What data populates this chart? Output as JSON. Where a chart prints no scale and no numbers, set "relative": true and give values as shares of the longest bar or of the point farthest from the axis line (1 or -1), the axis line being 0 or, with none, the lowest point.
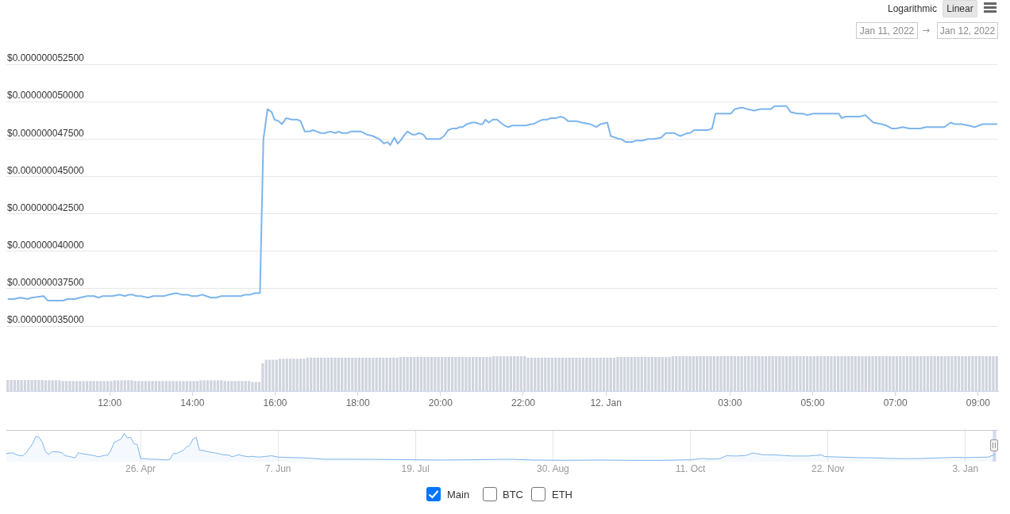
{
  "chart_data": [
    {
      "type": "line",
      "x": [
        "2022-01-11T09:33",
        "2022-01-11T09:41",
        "2022-01-11T09:50",
        "2022-01-11T10:01",
        "2022-01-11T10:07",
        "2022-01-11T10:24",
        "2022-01-11T10:30",
        "2022-01-11T10:40",
        "2022-01-11T10:52",
        "2022-01-11T10:59",
        "2022-01-11T11:09",
        "2022-01-11T11:17",
        "2022-01-11T11:27",
        "2022-01-11T11:37",
        "2022-01-11T11:44",
        "2022-01-11T11:50",
        "2022-01-11T11:58",
        "2022-01-11T12:04",
        "2022-01-11T12:14",
        "2022-01-11T12:22",
        "2022-01-11T12:28",
        "2022-01-11T12:33",
        "2022-01-11T12:39",
        "2022-01-11T12:45",
        "2022-01-11T12:56",
        "2022-01-11T13:03",
        "2022-01-11T13:11",
        "2022-01-11T13:19",
        "2022-01-11T13:26",
        "2022-01-11T13:36",
        "2022-01-11T13:44",
        "2022-01-11T13:52",
        "2022-01-11T13:59",
        "2022-01-11T14:07",
        "2022-01-11T14:14",
        "2022-01-11T14:20",
        "2022-01-11T14:27",
        "2022-01-11T14:34",
        "2022-01-11T14:42",
        "2022-01-11T14:49",
        "2022-01-11T14:55",
        "2022-01-11T14:58",
        "2022-01-11T15:10",
        "2022-01-11T15:17",
        "2022-01-11T15:24",
        "2022-01-11T15:31",
        "2022-01-11T15:38",
        "2022-01-11T15:43",
        "2022-01-11T15:49",
        "2022-01-11T15:55",
        "2022-01-11T15:59",
        "2022-01-11T16:05",
        "2022-01-11T16:10",
        "2022-01-11T16:16",
        "2022-01-11T16:24",
        "2022-01-11T16:32",
        "2022-01-11T16:37",
        "2022-01-11T16:43",
        "2022-01-11T16:49",
        "2022-01-11T16:55",
        "2022-01-11T17:01",
        "2022-01-11T17:06",
        "2022-01-11T17:12",
        "2022-01-11T17:20",
        "2022-01-11T17:28",
        "2022-01-11T17:32",
        "2022-01-11T17:37",
        "2022-01-11T17:39",
        "2022-01-11T17:45",
        "2022-01-11T17:50",
        "2022-01-11T18:00",
        "2022-01-11T18:05",
        "2022-01-11T18:13",
        "2022-01-11T18:22",
        "2022-01-11T18:31",
        "2022-01-11T18:38",
        "2022-01-11T18:43",
        "2022-01-11T18:47",
        "2022-01-11T18:53",
        "2022-01-11T18:58",
        "2022-01-11T19:02",
        "2022-01-11T19:08",
        "2022-01-11T19:12",
        "2022-01-11T19:19",
        "2022-01-11T19:24",
        "2022-01-11T19:29",
        "2022-01-11T19:35",
        "2022-01-11T19:40",
        "2022-01-11T19:47",
        "2022-01-11T19:55",
        "2022-01-11T19:59",
        "2022-01-11T20:05",
        "2022-01-11T20:11",
        "2022-01-11T20:17",
        "2022-01-11T20:23",
        "2022-01-11T20:28",
        "2022-01-11T20:32",
        "2022-01-11T20:38",
        "2022-01-11T20:46",
        "2022-01-11T20:51",
        "2022-01-11T20:57",
        "2022-01-11T21:01",
        "2022-01-11T21:05",
        "2022-01-11T21:10",
        "2022-01-11T21:16",
        "2022-01-11T21:22",
        "2022-01-11T21:27",
        "2022-01-11T21:33",
        "2022-01-11T21:38",
        "2022-01-11T21:44",
        "2022-01-11T21:48",
        "2022-01-11T21:56",
        "2022-01-11T22:04",
        "2022-01-11T22:11",
        "2022-01-11T22:15",
        "2022-01-11T22:23",
        "2022-01-11T22:29",
        "2022-01-11T22:35",
        "2022-01-11T22:40",
        "2022-01-11T22:48",
        "2022-01-11T22:54",
        "2022-01-11T23:00",
        "2022-01-11T23:05",
        "2022-01-11T23:17",
        "2022-01-11T23:25",
        "2022-01-11T23:37",
        "2022-01-11T23:46",
        "2022-01-11T23:52",
        "2022-01-12T00:02",
        "2022-01-12T00:07",
        "2022-01-12T00:13",
        "2022-01-12T00:19",
        "2022-01-12T00:22",
        "2022-01-12T00:29",
        "2022-01-12T00:38",
        "2022-01-12T00:44",
        "2022-01-12T00:53",
        "2022-01-12T01:01",
        "2022-01-12T01:10",
        "2022-01-12T01:20",
        "2022-01-12T01:27",
        "2022-01-12T01:34",
        "2022-01-12T01:39",
        "2022-01-12T01:43",
        "2022-01-12T01:48",
        "2022-01-12T01:53",
        "2022-01-12T01:59",
        "2022-01-12T02:02",
        "2022-01-12T02:08",
        "2022-01-12T02:16",
        "2022-01-12T02:21",
        "2022-01-12T02:28",
        "2022-01-12T02:34",
        "2022-01-12T02:39",
        "2022-01-12T02:47",
        "2022-01-12T02:54",
        "2022-01-12T03:01",
        "2022-01-12T03:07",
        "2022-01-12T03:16",
        "2022-01-12T03:19",
        "2022-01-12T03:25",
        "2022-01-12T03:35",
        "2022-01-12T03:44",
        "2022-01-12T03:50",
        "2022-01-12T03:56",
        "2022-01-12T03:59",
        "2022-01-12T04:05",
        "2022-01-12T04:14",
        "2022-01-12T04:22",
        "2022-01-12T04:28",
        "2022-01-12T04:38",
        "2022-01-12T04:46",
        "2022-01-12T04:52",
        "2022-01-12T05:01",
        "2022-01-12T05:08",
        "2022-01-12T05:16",
        "2022-01-12T05:24",
        "2022-01-12T05:32",
        "2022-01-12T05:38",
        "2022-01-12T05:42",
        "2022-01-12T05:48",
        "2022-01-12T05:59",
        "2022-01-12T06:08",
        "2022-01-12T06:16",
        "2022-01-12T06:28",
        "2022-01-12T06:40",
        "2022-01-12T06:47",
        "2022-01-12T06:55",
        "2022-01-12T07:01",
        "2022-01-12T07:11",
        "2022-01-12T07:20",
        "2022-01-12T07:26",
        "2022-01-12T07:36",
        "2022-01-12T07:44",
        "2022-01-12T07:57",
        "2022-01-12T08:11",
        "2022-01-12T08:20",
        "2022-01-12T08:26",
        "2022-01-12T08:36",
        "2022-01-12T08:46",
        "2022-01-12T08:55",
        "2022-01-12T09:07",
        "2022-01-12T09:19",
        "2022-01-12T09:27"
      ],
      "series": [
        {
          "color": "#7cb5ec",
          "values": [
            3.68e-08,
            3.68e-08,
            3.69e-08,
            3.68e-08,
            3.69e-08,
            3.7e-08,
            3.67e-08,
            3.67e-08,
            3.67e-08,
            3.68e-08,
            3.68e-08,
            3.69e-08,
            3.7e-08,
            3.7e-08,
            3.69e-08,
            3.7e-08,
            3.7e-08,
            3.7e-08,
            3.71e-08,
            3.7e-08,
            3.71e-08,
            3.71e-08,
            3.7e-08,
            3.7e-08,
            3.69e-08,
            3.7e-08,
            3.7e-08,
            3.7e-08,
            3.71e-08,
            3.72e-08,
            3.71e-08,
            3.71e-08,
            3.7e-08,
            3.7e-08,
            3.71e-08,
            3.7e-08,
            3.69e-08,
            3.69e-08,
            3.7e-08,
            3.7e-08,
            3.7e-08,
            3.7e-08,
            3.7e-08,
            3.71e-08,
            3.71e-08,
            3.72e-08,
            3.72e-08,
            4.75e-08,
            4.95e-08,
            4.93e-08,
            4.88e-08,
            4.87e-08,
            4.85e-08,
            4.89e-08,
            4.88e-08,
            4.88e-08,
            4.87e-08,
            4.8e-08,
            4.8e-08,
            4.81e-08,
            4.8e-08,
            4.79e-08,
            4.79e-08,
            4.8e-08,
            4.79e-08,
            4.8e-08,
            4.79e-08,
            4.79e-08,
            4.79e-08,
            4.8e-08,
            4.8e-08,
            4.8e-08,
            4.78e-08,
            4.77e-08,
            4.75e-08,
            4.72e-08,
            4.73e-08,
            4.71e-08,
            4.76e-08,
            4.72e-08,
            4.74e-08,
            4.78e-08,
            4.8e-08,
            4.78e-08,
            4.78e-08,
            4.79e-08,
            4.78e-08,
            4.75e-08,
            4.75e-08,
            4.75e-08,
            4.75e-08,
            4.77e-08,
            4.81e-08,
            4.82e-08,
            4.82e-08,
            4.83e-08,
            4.83e-08,
            4.85e-08,
            4.86e-08,
            4.86e-08,
            4.85e-08,
            4.85e-08,
            4.88e-08,
            4.86e-08,
            4.88e-08,
            4.88e-08,
            4.86e-08,
            4.84e-08,
            4.83e-08,
            4.84e-08,
            4.84e-08,
            4.84e-08,
            4.84e-08,
            4.85e-08,
            4.85e-08,
            4.87e-08,
            4.88e-08,
            4.88e-08,
            4.89e-08,
            4.89e-08,
            4.9e-08,
            4.89e-08,
            4.87e-08,
            4.87e-08,
            4.86e-08,
            4.85e-08,
            4.83e-08,
            4.85e-08,
            4.86e-08,
            4.77e-08,
            4.76e-08,
            4.75e-08,
            4.75e-08,
            4.73e-08,
            4.73e-08,
            4.74e-08,
            4.74e-08,
            4.75e-08,
            4.75e-08,
            4.76e-08,
            4.79e-08,
            4.79e-08,
            4.79e-08,
            4.78e-08,
            4.77e-08,
            4.78e-08,
            4.79e-08,
            4.79e-08,
            4.81e-08,
            4.81e-08,
            4.81e-08,
            4.81e-08,
            4.82e-08,
            4.92e-08,
            4.92e-08,
            4.92e-08,
            4.92e-08,
            4.95e-08,
            4.96e-08,
            4.96e-08,
            4.95e-08,
            4.94e-08,
            4.95e-08,
            4.95e-08,
            4.95e-08,
            4.95e-08,
            4.97e-08,
            4.97e-08,
            4.97e-08,
            4.93e-08,
            4.92e-08,
            4.92e-08,
            4.91e-08,
            4.92e-08,
            4.92e-08,
            4.92e-08,
            4.92e-08,
            4.92e-08,
            4.92e-08,
            4.89e-08,
            4.9e-08,
            4.9e-08,
            4.9e-08,
            4.91e-08,
            4.86e-08,
            4.85e-08,
            4.84e-08,
            4.82e-08,
            4.82e-08,
            4.83e-08,
            4.82e-08,
            4.82e-08,
            4.82e-08,
            4.83e-08,
            4.83e-08,
            4.83e-08,
            4.86e-08,
            4.85e-08,
            4.85e-08,
            4.84e-08,
            4.83e-08,
            4.85e-08,
            4.85e-08,
            4.85e-08
          ]
        }
      ],
      "xlim": [
        "2022-01-11T09:30",
        "2022-01-12T09:29"
      ],
      "ylim": [
        3.5e-08,
        5.25e-08
      ],
      "yticks": [
        {
          "value": 3.5e-08,
          "label": "$0.000000035000"
        },
        {
          "value": 3.75e-08,
          "label": "$0.000000037500"
        },
        {
          "value": 4e-08,
          "label": "$0.000000040000"
        },
        {
          "value": 4.25e-08,
          "label": "$0.000000042500"
        },
        {
          "value": 4.5e-08,
          "label": "$0.000000045000"
        },
        {
          "value": 4.75e-08,
          "label": "$0.000000047500"
        },
        {
          "value": 5e-08,
          "label": "$0.000000050000"
        },
        {
          "value": 5.25e-08,
          "label": "$0.000000052500"
        }
      ],
      "grid": "y",
      "tick_labels": "y",
      "annotations": [
        "Logarithmic",
        "Linear",
        "Jan 11, 2022",
        "→",
        "Jan 12, 2022",
        "Main",
        "BTC",
        "ETH"
      ]
    },
    {
      "type": "bar",
      "relative": true,
      "color": "#d0d4de",
      "x": [
        "2022-01-11T09:32",
        "2022-01-11T09:37",
        "2022-01-11T09:42",
        "2022-01-11T09:47",
        "2022-01-11T09:52",
        "2022-01-11T09:57",
        "2022-01-11T10:02",
        "2022-01-11T10:07",
        "2022-01-11T10:12",
        "2022-01-11T10:17",
        "2022-01-11T10:22",
        "2022-01-11T10:27",
        "2022-01-11T10:32",
        "2022-01-11T10:37",
        "2022-01-11T10:42",
        "2022-01-11T10:47",
        "2022-01-11T10:52",
        "2022-01-11T10:57",
        "2022-01-11T11:02",
        "2022-01-11T11:07",
        "2022-01-11T11:12",
        "2022-01-11T11:17",
        "2022-01-11T11:22",
        "2022-01-11T11:27",
        "2022-01-11T11:32",
        "2022-01-11T11:37",
        "2022-01-11T11:42",
        "2022-01-11T11:47",
        "2022-01-11T11:52",
        "2022-01-11T11:57",
        "2022-01-11T12:02",
        "2022-01-11T12:07",
        "2022-01-11T12:12",
        "2022-01-11T12:17",
        "2022-01-11T12:22",
        "2022-01-11T12:27",
        "2022-01-11T12:32",
        "2022-01-11T12:37",
        "2022-01-11T12:42",
        "2022-01-11T12:47",
        "2022-01-11T12:52",
        "2022-01-11T12:57",
        "2022-01-11T13:02",
        "2022-01-11T13:07",
        "2022-01-11T13:12",
        "2022-01-11T13:17",
        "2022-01-11T13:22",
        "2022-01-11T13:27",
        "2022-01-11T13:32",
        "2022-01-11T13:37",
        "2022-01-11T13:42",
        "2022-01-11T13:47",
        "2022-01-11T13:52",
        "2022-01-11T13:57",
        "2022-01-11T14:02",
        "2022-01-11T14:07",
        "2022-01-11T14:12",
        "2022-01-11T14:17",
        "2022-01-11T14:22",
        "2022-01-11T14:27",
        "2022-01-11T14:32",
        "2022-01-11T14:37",
        "2022-01-11T14:42",
        "2022-01-11T14:47",
        "2022-01-11T14:52",
        "2022-01-11T14:57",
        "2022-01-11T15:02",
        "2022-01-11T15:07",
        "2022-01-11T15:12",
        "2022-01-11T15:17",
        "2022-01-11T15:22",
        "2022-01-11T15:27",
        "2022-01-11T15:32",
        "2022-01-11T15:37",
        "2022-01-11T15:42",
        "2022-01-11T15:47",
        "2022-01-11T15:52",
        "2022-01-11T15:57",
        "2022-01-11T16:02",
        "2022-01-11T16:07",
        "2022-01-11T16:12",
        "2022-01-11T16:17",
        "2022-01-11T16:22",
        "2022-01-11T16:27",
        "2022-01-11T16:32",
        "2022-01-11T16:37",
        "2022-01-11T16:42",
        "2022-01-11T16:47",
        "2022-01-11T16:52",
        "2022-01-11T16:57",
        "2022-01-11T17:02",
        "2022-01-11T17:07",
        "2022-01-11T17:12",
        "2022-01-11T17:17",
        "2022-01-11T17:22",
        "2022-01-11T17:27",
        "2022-01-11T17:32",
        "2022-01-11T17:37",
        "2022-01-11T17:42",
        "2022-01-11T17:47",
        "2022-01-11T17:52",
        "2022-01-11T17:57",
        "2022-01-11T18:02",
        "2022-01-11T18:07",
        "2022-01-11T18:12",
        "2022-01-11T18:17",
        "2022-01-11T18:22",
        "2022-01-11T18:27",
        "2022-01-11T18:32",
        "2022-01-11T18:37",
        "2022-01-11T18:42",
        "2022-01-11T18:47",
        "2022-01-11T18:52",
        "2022-01-11T18:57",
        "2022-01-11T19:02",
        "2022-01-11T19:07",
        "2022-01-11T19:12",
        "2022-01-11T19:17",
        "2022-01-11T19:22",
        "2022-01-11T19:27",
        "2022-01-11T19:32",
        "2022-01-11T19:37",
        "2022-01-11T19:42",
        "2022-01-11T19:47",
        "2022-01-11T19:52",
        "2022-01-11T19:57",
        "2022-01-11T20:02",
        "2022-01-11T20:07",
        "2022-01-11T20:12",
        "2022-01-11T20:17",
        "2022-01-11T20:22",
        "2022-01-11T20:27",
        "2022-01-11T20:32",
        "2022-01-11T20:37",
        "2022-01-11T20:42",
        "2022-01-11T20:47",
        "2022-01-11T20:52",
        "2022-01-11T20:57",
        "2022-01-11T21:02",
        "2022-01-11T21:07",
        "2022-01-11T21:12",
        "2022-01-11T21:17",
        "2022-01-11T21:22",
        "2022-01-11T21:27",
        "2022-01-11T21:32",
        "2022-01-11T21:37",
        "2022-01-11T21:42",
        "2022-01-11T21:47",
        "2022-01-11T21:52",
        "2022-01-11T21:57",
        "2022-01-11T22:02",
        "2022-01-11T22:07",
        "2022-01-11T22:12",
        "2022-01-11T22:17",
        "2022-01-11T22:22",
        "2022-01-11T22:27",
        "2022-01-11T22:32",
        "2022-01-11T22:37",
        "2022-01-11T22:42",
        "2022-01-11T22:47",
        "2022-01-11T22:52",
        "2022-01-11T22:57",
        "2022-01-11T23:02",
        "2022-01-11T23:07",
        "2022-01-11T23:12",
        "2022-01-11T23:17",
        "2022-01-11T23:22",
        "2022-01-11T23:27",
        "2022-01-11T23:32",
        "2022-01-11T23:37",
        "2022-01-11T23:42",
        "2022-01-11T23:47",
        "2022-01-11T23:52",
        "2022-01-11T23:57",
        "2022-01-12T00:02",
        "2022-01-12T00:07",
        "2022-01-12T00:12",
        "2022-01-12T00:17",
        "2022-01-12T00:22",
        "2022-01-12T00:27",
        "2022-01-12T00:32",
        "2022-01-12T00:37",
        "2022-01-12T00:42",
        "2022-01-12T00:47",
        "2022-01-12T00:52",
        "2022-01-12T00:57",
        "2022-01-12T01:02",
        "2022-01-12T01:07",
        "2022-01-12T01:12",
        "2022-01-12T01:17",
        "2022-01-12T01:22",
        "2022-01-12T01:27",
        "2022-01-12T01:32",
        "2022-01-12T01:37",
        "2022-01-12T01:42",
        "2022-01-12T01:47",
        "2022-01-12T01:52",
        "2022-01-12T01:57",
        "2022-01-12T02:02",
        "2022-01-12T02:07",
        "2022-01-12T02:12",
        "2022-01-12T02:17",
        "2022-01-12T02:22",
        "2022-01-12T02:27",
        "2022-01-12T02:32",
        "2022-01-12T02:37",
        "2022-01-12T02:42",
        "2022-01-12T02:47",
        "2022-01-12T02:52",
        "2022-01-12T02:57",
        "2022-01-12T03:02",
        "2022-01-12T03:07",
        "2022-01-12T03:12",
        "2022-01-12T03:17",
        "2022-01-12T03:22",
        "2022-01-12T03:27",
        "2022-01-12T03:32",
        "2022-01-12T03:37",
        "2022-01-12T03:42",
        "2022-01-12T03:47",
        "2022-01-12T03:52",
        "2022-01-12T03:57",
        "2022-01-12T04:02",
        "2022-01-12T04:07",
        "2022-01-12T04:12",
        "2022-01-12T04:17",
        "2022-01-12T04:22",
        "2022-01-12T04:27",
        "2022-01-12T04:32",
        "2022-01-12T04:37",
        "2022-01-12T04:42",
        "2022-01-12T04:47",
        "2022-01-12T04:52",
        "2022-01-12T04:57",
        "2022-01-12T05:02",
        "2022-01-12T05:07",
        "2022-01-12T05:12",
        "2022-01-12T05:17",
        "2022-01-12T05:22",
        "2022-01-12T05:27",
        "2022-01-12T05:32",
        "2022-01-12T05:37",
        "2022-01-12T05:42",
        "2022-01-12T05:47",
        "2022-01-12T05:52",
        "2022-01-12T05:57",
        "2022-01-12T06:02",
        "2022-01-12T06:07",
        "2022-01-12T06:12",
        "2022-01-12T06:17",
        "2022-01-12T06:22",
        "2022-01-12T06:27",
        "2022-01-12T06:32",
        "2022-01-12T06:37",
        "2022-01-12T06:42",
        "2022-01-12T06:47",
        "2022-01-12T06:52",
        "2022-01-12T06:57",
        "2022-01-12T07:02",
        "2022-01-12T07:07",
        "2022-01-12T07:12",
        "2022-01-12T07:17",
        "2022-01-12T07:22",
        "2022-01-12T07:27",
        "2022-01-12T07:32",
        "2022-01-12T07:37",
        "2022-01-12T07:42",
        "2022-01-12T07:47",
        "2022-01-12T07:52",
        "2022-01-12T07:57",
        "2022-01-12T08:02",
        "2022-01-12T08:07",
        "2022-01-12T08:12",
        "2022-01-12T08:17",
        "2022-01-12T08:22",
        "2022-01-12T08:27",
        "2022-01-12T08:32",
        "2022-01-12T08:37",
        "2022-01-12T08:42",
        "2022-01-12T08:47",
        "2022-01-12T08:52",
        "2022-01-12T08:57",
        "2022-01-12T09:02",
        "2022-01-12T09:07",
        "2022-01-12T09:12",
        "2022-01-12T09:17",
        "2022-01-12T09:22",
        "2022-01-12T09:27"
      ],
      "values": [
        0.31,
        0.31,
        0.31,
        0.31,
        0.31,
        0.31,
        0.31,
        0.31,
        0.31,
        0.31,
        0.31,
        0.3,
        0.3,
        0.3,
        0.3,
        0.3,
        0.28,
        0.28,
        0.28,
        0.28,
        0.28,
        0.28,
        0.28,
        0.28,
        0.28,
        0.28,
        0.28,
        0.28,
        0.28,
        0.28,
        0.28,
        0.3,
        0.3,
        0.3,
        0.3,
        0.3,
        0.3,
        0.28,
        0.28,
        0.28,
        0.28,
        0.28,
        0.28,
        0.28,
        0.28,
        0.28,
        0.28,
        0.28,
        0.28,
        0.28,
        0.28,
        0.28,
        0.28,
        0.28,
        0.28,
        0.28,
        0.3,
        0.3,
        0.3,
        0.3,
        0.3,
        0.3,
        0.3,
        0.28,
        0.28,
        0.28,
        0.28,
        0.28,
        0.28,
        0.28,
        0.28,
        0.25,
        0.25,
        0.25,
        0.79,
        0.89,
        0.89,
        0.89,
        0.89,
        0.92,
        0.92,
        0.92,
        0.92,
        0.92,
        0.92,
        0.92,
        0.92,
        0.95,
        0.95,
        0.95,
        0.95,
        0.95,
        0.95,
        0.95,
        0.95,
        0.95,
        0.95,
        0.95,
        0.95,
        0.95,
        0.95,
        0.95,
        0.95,
        0.95,
        0.95,
        0.95,
        0.95,
        0.95,
        0.95,
        0.95,
        0.95,
        0.95,
        0.95,
        0.95,
        0.97,
        0.97,
        0.97,
        0.97,
        0.97,
        0.97,
        0.97,
        0.97,
        0.97,
        0.97,
        0.97,
        0.97,
        0.97,
        0.97,
        0.97,
        0.97,
        0.97,
        0.97,
        0.97,
        0.97,
        0.97,
        0.97,
        0.97,
        0.97,
        0.97,
        0.97,
        0.97,
        0.99,
        0.99,
        0.99,
        0.99,
        0.99,
        0.99,
        0.99,
        0.99,
        0.99,
        0.99,
        0.95,
        0.95,
        0.95,
        0.95,
        0.95,
        0.95,
        0.95,
        0.95,
        0.95,
        0.95,
        0.95,
        0.95,
        0.95,
        0.95,
        0.95,
        0.95,
        0.95,
        0.95,
        0.95,
        0.95,
        0.95,
        0.95,
        0.95,
        0.95,
        0.95,
        0.95,
        0.97,
        0.97,
        0.97,
        0.97,
        0.97,
        0.97,
        0.97,
        0.97,
        0.97,
        0.97,
        0.97,
        0.97,
        0.97,
        0.97,
        0.97,
        0.97,
        1,
        1,
        1,
        1,
        1,
        1,
        1,
        1,
        1,
        1,
        1,
        1,
        1,
        1,
        1,
        1,
        1,
        1,
        1,
        1,
        1,
        1,
        1,
        1,
        1,
        1,
        1,
        1,
        1,
        1,
        1,
        1,
        1,
        1,
        1,
        1,
        1,
        1,
        1,
        1,
        1,
        1,
        1,
        1,
        1,
        1,
        1,
        1,
        1,
        1,
        1,
        1,
        1,
        1,
        1,
        1,
        1,
        1,
        1,
        1,
        1,
        1,
        1,
        1,
        1,
        1,
        1,
        1,
        1,
        1,
        1,
        1,
        1,
        1,
        1,
        1,
        1,
        1,
        1,
        1,
        1,
        1,
        1,
        1,
        1,
        1,
        1,
        1,
        1,
        1,
        1,
        1,
        1,
        1,
        1
      ],
      "xlim": [
        "2022-01-11T09:30",
        "2022-01-12T09:29"
      ],
      "xticks": [
        {
          "value": "2022-01-11T12:00",
          "label": "12:00"
        },
        {
          "value": "2022-01-11T14:00",
          "label": "14:00"
        },
        {
          "value": "2022-01-11T16:00",
          "label": "16:00"
        },
        {
          "value": "2022-01-11T18:00",
          "label": "18:00"
        },
        {
          "value": "2022-01-11T20:00",
          "label": "20:00"
        },
        {
          "value": "2022-01-11T22:00",
          "label": "22:00"
        },
        {
          "value": "2022-01-12T00:00",
          "label": "12. Jan"
        },
        {
          "value": "2022-01-12T03:00",
          "label": "03:00"
        },
        {
          "value": "2022-01-12T05:00",
          "label": "05:00"
        },
        {
          "value": "2022-01-12T07:00",
          "label": "07:00"
        },
        {
          "value": "2022-01-12T09:00",
          "label": "09:00"
        }
      ],
      "tick_labels": "x"
    },
    {
      "type": "area",
      "relative": true,
      "color": "#7cb5ec",
      "x": [
        "2021-03-16",
        "2021-03-18",
        "2021-03-19",
        "2021-03-20",
        "2021-03-21",
        "2021-03-22",
        "2021-03-24",
        "2021-03-25",
        "2021-03-26",
        "2021-03-27",
        "2021-03-28",
        "2021-03-29",
        "2021-03-30",
        "2021-04-01",
        "2021-04-02",
        "2021-04-03",
        "2021-04-04",
        "2021-04-05",
        "2021-04-06",
        "2021-04-07",
        "2021-04-08",
        "2021-04-10",
        "2021-04-12",
        "2021-04-13",
        "2021-04-15",
        "2021-04-16",
        "2021-04-17",
        "2021-04-18",
        "2021-04-19",
        "2021-04-20",
        "2021-04-21",
        "2021-04-22",
        "2021-04-23",
        "2021-04-24",
        "2021-04-25",
        "2021-04-26",
        "2021-04-29",
        "2021-05-02",
        "2021-05-04",
        "2021-05-05",
        "2021-05-06",
        "2021-05-07",
        "2021-05-09",
        "2021-05-10",
        "2021-05-11",
        "2021-05-12",
        "2021-05-13",
        "2021-05-14",
        "2021-05-15",
        "2021-05-17",
        "2021-05-19",
        "2021-05-21",
        "2021-05-23",
        "2021-05-24",
        "2021-05-25",
        "2021-05-26",
        "2021-05-27",
        "2021-05-29",
        "2021-05-30",
        "2021-06-01",
        "2021-06-03",
        "2021-06-05",
        "2021-06-07",
        "2021-06-12",
        "2021-06-17",
        "2021-06-21",
        "2021-07-01",
        "2021-07-11",
        "2021-07-26",
        "2021-08-05",
        "2021-08-17",
        "2021-08-24",
        "2021-09-03",
        "2021-09-13",
        "2021-09-23",
        "2021-10-03",
        "2021-10-11",
        "2021-10-15",
        "2021-10-17",
        "2021-10-20",
        "2021-10-22",
        "2021-10-25",
        "2021-10-28",
        "2021-10-30",
        "2021-11-02",
        "2021-11-06",
        "2021-11-11",
        "2021-11-16",
        "2021-11-20",
        "2021-11-21",
        "2021-11-26",
        "2021-12-01",
        "2021-12-06",
        "2021-12-11",
        "2021-12-16",
        "2021-12-21",
        "2021-12-26",
        "2021-12-31",
        "2022-01-03",
        "2022-01-06",
        "2022-01-10",
        "2022-01-12"
      ],
      "values": [
        0.25,
        0.28,
        0.21,
        0.18,
        0.17,
        0.27,
        0.61,
        0.88,
        0.86,
        0.67,
        0.31,
        0.22,
        0.32,
        0.31,
        0.28,
        0.17,
        0.15,
        0.12,
        0.09,
        0.28,
        0.25,
        0.21,
        0.17,
        0.13,
        0.18,
        0.19,
        0.39,
        0.67,
        0.73,
        0.79,
        1,
        0.83,
        0.86,
        0.61,
        0.59,
        0.07,
        0.04,
        0.03,
        0.01,
        0.04,
        0.25,
        0.25,
        0.37,
        0.49,
        0.55,
        0.79,
        0.86,
        0.37,
        0.37,
        0.31,
        0.27,
        0.21,
        0.19,
        0.13,
        0.17,
        0.21,
        0.17,
        0.13,
        0.15,
        0.12,
        0.14,
        0.17,
        0.12,
        0.1,
        0.08,
        0.04,
        0.04,
        0.03,
        0.01,
        0.02,
        0.04,
        0.01,
        0,
        0.01,
        0,
        0,
        0.02,
        0.07,
        0.04,
        0.06,
        0.17,
        0.16,
        0.18,
        0.27,
        0.21,
        0.2,
        0.16,
        0.16,
        0.2,
        0.14,
        0.12,
        0.1,
        0.09,
        0.07,
        0.06,
        0.07,
        0.09,
        0.11,
        0.1,
        0.11,
        0.12,
        0.22
      ],
      "xlim": [
        "2021-03-16",
        "2022-01-13"
      ],
      "xticks": [
        {
          "value": "2021-04-26",
          "label": "26. Apr"
        },
        {
          "value": "2021-06-07",
          "label": "7. Jun"
        },
        {
          "value": "2021-07-19",
          "label": "19. Jul"
        },
        {
          "value": "2021-08-30",
          "label": "30. Aug"
        },
        {
          "value": "2021-10-11",
          "label": "11. Oct"
        },
        {
          "value": "2021-11-22",
          "label": "22. Nov"
        },
        {
          "value": "2022-01-03",
          "label": "3. Jan"
        }
      ],
      "grid": "x",
      "tick_labels": "x",
      "bands": [
        {
          "axis": "x",
          "from": "2022-01-11T09:30",
          "to": "2022-01-12T09:30",
          "color": "#d1daed"
        }
      ]
    }
  ]
}
